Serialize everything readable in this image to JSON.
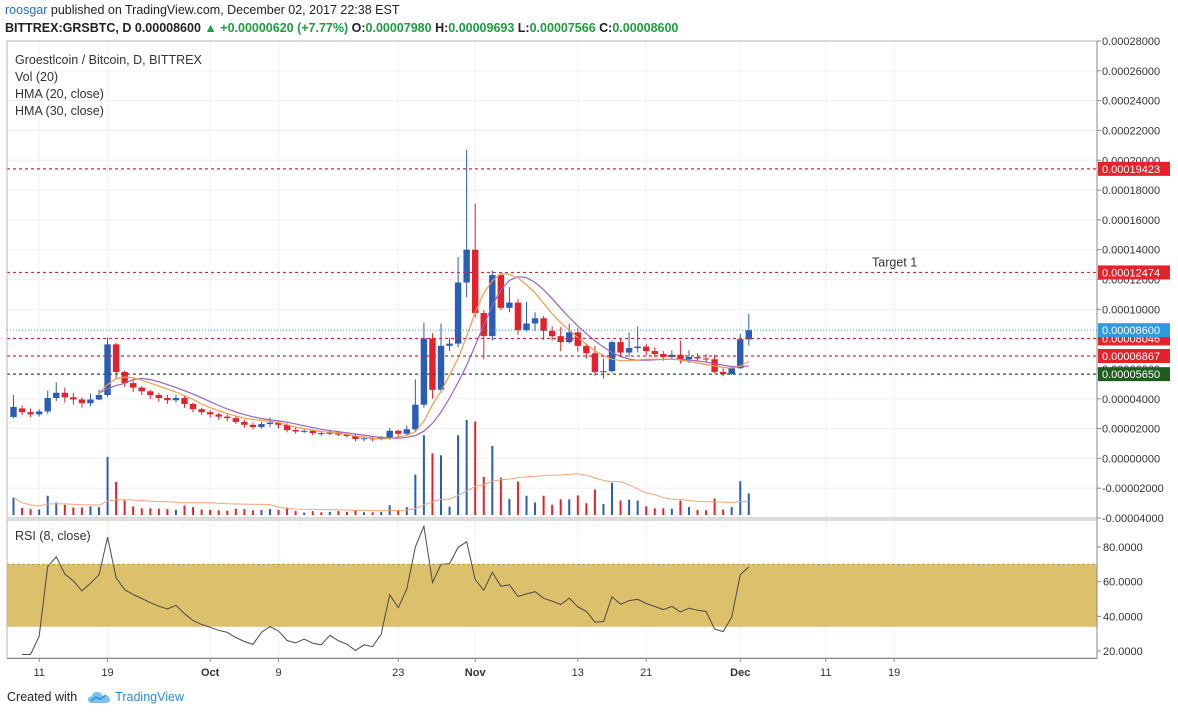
{
  "header": {
    "author": "roosgar",
    "published_text": "published on TradingView.com, December 02, 2017 22:38 EST",
    "symbol": "BITTREX:GRSBTC, D",
    "last": "0.00008600",
    "change_icon": "triangle-up-icon",
    "change": "+0.00000620 (+7.77%)",
    "open_label": "O:",
    "open": "0.00007980",
    "high_label": "H:",
    "high": "0.00009693",
    "low_label": "L:",
    "low": "0.00007566",
    "close_label": "C:",
    "close": "0.00008600"
  },
  "legend": {
    "title": "Groestlcoin / Bitcoin, D, BITTREX",
    "vol": "Vol (20)",
    "hma20": "HMA (20, close)",
    "hma30": "HMA (30, close)",
    "rsi": "RSI (8, close)"
  },
  "footer": {
    "created_with": "Created with",
    "brand": "TradingView",
    "logo_icon": "tradingview-cloud-icon"
  },
  "colors": {
    "up": "#2a5db6",
    "down": "#e3222b",
    "hma20": "#f29b4b",
    "hma30": "#9b63c6",
    "vol_ma": "#f7a477",
    "rsi_line": "#4a4a4a",
    "rsi_band": "#d9b95c",
    "level_red": "#e3222b",
    "level_dark": "#1e5d1e",
    "last_price": "#2f9ae0"
  },
  "chart_data": {
    "type": "candlestick",
    "price_axis": {
      "ticks": [
        "0.00028000",
        "0.00026000",
        "0.00024000",
        "0.00022000",
        "0.00020000",
        "0.00018000",
        "0.00016000",
        "0.00014000",
        "0.00012000",
        "0.00010000",
        "0.00008000",
        "0.00006000",
        "0.00004000",
        "0.00002000",
        "0.00000000",
        "-0.00002000",
        "-0.00004000"
      ],
      "min": -4e-05,
      "max": 0.00028
    },
    "x_axis_labels": [
      {
        "label": "11",
        "index": 3
      },
      {
        "label": "19",
        "index": 11
      },
      {
        "label": "Oct",
        "index": 23
      },
      {
        "label": "9",
        "index": 31
      },
      {
        "label": "23",
        "index": 45
      },
      {
        "label": "Nov",
        "index": 54
      },
      {
        "label": "13",
        "index": 66
      },
      {
        "label": "21",
        "index": 74
      },
      {
        "label": "Dec",
        "index": 85
      },
      {
        "label": "11",
        "index": 95
      },
      {
        "label": "19",
        "index": 103
      }
    ],
    "levels": [
      {
        "value": 0.00019423,
        "label": "0.00019423",
        "color": "#e3222b",
        "style": "dashed"
      },
      {
        "value": 0.00012474,
        "label": "0.00012474",
        "color": "#e3222b",
        "style": "dashed",
        "annotation": "Target 1"
      },
      {
        "value": 8.046e-05,
        "label": "0.00008046",
        "color": "#e3222b",
        "style": "dashed"
      },
      {
        "value": 6.867e-05,
        "label": "0.00006867",
        "color": "#e3222b",
        "style": "dashed"
      },
      {
        "value": 5.65e-05,
        "label": "0.00005650",
        "color": "#1e5d1e",
        "style": "dashed"
      }
    ],
    "last_price": {
      "value": 8.6e-05,
      "label": "0.00008600"
    },
    "candles": [
      [
        2.78e-05,
        3.45e-05,
        2.7e-05,
        4.25e-05
      ],
      [
        3.35e-05,
        3.1e-05,
        2.9e-05,
        3.55e-05
      ],
      [
        3.1e-05,
        2.95e-05,
        2.75e-05,
        3.35e-05
      ],
      [
        2.95e-05,
        3.15e-05,
        2.8e-05,
        3.3e-05
      ],
      [
        3.15e-05,
        4.05e-05,
        3e-05,
        4.55e-05
      ],
      [
        4.05e-05,
        4.4e-05,
        3.85e-05,
        5.1e-05
      ],
      [
        4.4e-05,
        4.1e-05,
        3.75e-05,
        4.75e-05
      ],
      [
        4.1e-05,
        3.95e-05,
        3.6e-05,
        4.4e-05
      ],
      [
        3.95e-05,
        3.7e-05,
        3.4e-05,
        4.1e-05
      ],
      [
        3.7e-05,
        3.95e-05,
        3.5e-05,
        4.35e-05
      ],
      [
        3.95e-05,
        4.25e-05,
        3.9e-05,
        4.6e-05
      ],
      [
        4.25e-05,
        7.65e-05,
        4.1e-05,
        8.1e-05
      ],
      [
        7.65e-05,
        5.8e-05,
        5.4e-05,
        7.75e-05
      ],
      [
        5.8e-05,
        5.05e-05,
        4.8e-05,
        5.9e-05
      ],
      [
        5.05e-05,
        4.75e-05,
        4.45e-05,
        5.25e-05
      ],
      [
        4.75e-05,
        4.5e-05,
        4.25e-05,
        4.85e-05
      ],
      [
        4.5e-05,
        4.25e-05,
        4e-05,
        4.6e-05
      ],
      [
        4.25e-05,
        4.05e-05,
        3.8e-05,
        4.4e-05
      ],
      [
        4.05e-05,
        3.9e-05,
        3.65e-05,
        4.25e-05
      ],
      [
        3.9e-05,
        4.05e-05,
        3.75e-05,
        4.25e-05
      ],
      [
        4.05e-05,
        3.65e-05,
        3.4e-05,
        4.2e-05
      ],
      [
        3.65e-05,
        3.3e-05,
        3.1e-05,
        3.75e-05
      ],
      [
        3.3e-05,
        3.1e-05,
        2.9e-05,
        3.4e-05
      ],
      [
        3.1e-05,
        2.95e-05,
        2.75e-05,
        3.25e-05
      ],
      [
        2.95e-05,
        2.8e-05,
        2.6e-05,
        3.05e-05
      ],
      [
        2.8e-05,
        2.7e-05,
        2.5e-05,
        2.95e-05
      ],
      [
        2.7e-05,
        2.45e-05,
        2.3e-05,
        2.85e-05
      ],
      [
        2.45e-05,
        2.25e-05,
        2.05e-05,
        2.6e-05
      ],
      [
        2.25e-05,
        2.1e-05,
        1.95e-05,
        2.4e-05
      ],
      [
        2.1e-05,
        2.3e-05,
        2e-05,
        2.45e-05
      ],
      [
        2.3e-05,
        2.4e-05,
        2.1e-05,
        2.75e-05
      ],
      [
        2.4e-05,
        2.25e-05,
        2e-05,
        2.5e-05
      ],
      [
        2.25e-05,
        1.9e-05,
        1.75e-05,
        2.35e-05
      ],
      [
        1.9e-05,
        1.8e-05,
        1.65e-05,
        2.05e-05
      ],
      [
        1.8e-05,
        1.85e-05,
        1.7e-05,
        1.95e-05
      ],
      [
        1.85e-05,
        1.7e-05,
        1.55e-05,
        1.9e-05
      ],
      [
        1.7e-05,
        1.65e-05,
        1.5e-05,
        1.8e-05
      ],
      [
        1.65e-05,
        1.75e-05,
        1.55e-05,
        1.85e-05
      ],
      [
        1.75e-05,
        1.6e-05,
        1.5e-05,
        1.85e-05
      ],
      [
        1.6e-05,
        1.5e-05,
        1.4e-05,
        1.7e-05
      ],
      [
        1.5e-05,
        1.3e-05,
        1.15e-05,
        1.6e-05
      ],
      [
        1.3e-05,
        1.35e-05,
        1.15e-05,
        1.45e-05
      ],
      [
        1.35e-05,
        1.3e-05,
        1.15e-05,
        1.45e-05
      ],
      [
        1.3e-05,
        1.4e-05,
        1.2e-05,
        1.5e-05
      ],
      [
        1.4e-05,
        1.85e-05,
        1.25e-05,
        2.05e-05
      ],
      [
        1.85e-05,
        1.65e-05,
        1.45e-05,
        1.9e-05
      ],
      [
        1.65e-05,
        1.95e-05,
        1.5e-05,
        2.2e-05
      ],
      [
        1.95e-05,
        3.6e-05,
        1.8e-05,
        5.3e-05
      ],
      [
        3.6e-05,
        8.05e-05,
        3.4e-05,
        9.1e-05
      ],
      [
        8.05e-05,
        4.6e-05,
        4e-05,
        8.4e-05
      ],
      [
        4.6e-05,
        7.55e-05,
        4.4e-05,
        9.05e-05
      ],
      [
        7.55e-05,
        7.7e-05,
        7.2e-05,
        8.1e-05
      ],
      [
        7.7e-05,
        0.000118,
        7.45e-05,
        0.000135
      ],
      [
        0.000118,
        0.00014,
        0.000108,
        0.000207
      ],
      [
        0.00014,
        9.75e-05,
        9.45e-05,
        0.000171
      ],
      [
        9.75e-05,
        8.2e-05,
        6.65e-05,
        9.95e-05
      ],
      [
        8.2e-05,
        0.000123,
        7.9e-05,
        0.000126
      ],
      [
        0.000123,
        0.000101,
        9.95e-05,
        0.000125
      ],
      [
        0.000101,
        0.0001045,
        9.8e-05,
        0.000115
      ],
      [
        0.0001045,
        8.6e-05,
        8.3e-05,
        0.000107
      ],
      [
        8.6e-05,
        9.05e-05,
        8.5e-05,
        0.000105
      ],
      [
        9.05e-05,
        9.4e-05,
        8.55e-05,
        9.8e-05
      ],
      [
        9.4e-05,
        8.55e-05,
        7.95e-05,
        9.55e-05
      ],
      [
        8.55e-05,
        8.2e-05,
        7.9e-05,
        8.85e-05
      ],
      [
        8.2e-05,
        7.8e-05,
        7.2e-05,
        8.8e-05
      ],
      [
        7.8e-05,
        8.45e-05,
        7.7e-05,
        9.05e-05
      ],
      [
        8.45e-05,
        7.55e-05,
        7.15e-05,
        8.75e-05
      ],
      [
        7.55e-05,
        7.05e-05,
        6.7e-05,
        7.7e-05
      ],
      [
        7.05e-05,
        5.8e-05,
        5.55e-05,
        7.55e-05
      ],
      [
        5.8e-05,
        5.85e-05,
        5.35e-05,
        6.7e-05
      ],
      [
        5.85e-05,
        7.8e-05,
        5.75e-05,
        7.9e-05
      ],
      [
        7.8e-05,
        7.1e-05,
        6.9e-05,
        8.05e-05
      ],
      [
        7.1e-05,
        7.4e-05,
        6.8e-05,
        8.45e-05
      ],
      [
        7.4e-05,
        7.5e-05,
        7.1e-05,
        8.85e-05
      ],
      [
        7.5e-05,
        7.2e-05,
        6.9e-05,
        7.7e-05
      ],
      [
        7.2e-05,
        7e-05,
        6.8e-05,
        7.45e-05
      ],
      [
        7e-05,
        6.8e-05,
        6.55e-05,
        7.2e-05
      ],
      [
        6.8e-05,
        6.95e-05,
        6.6e-05,
        7.25e-05
      ],
      [
        6.95e-05,
        6.65e-05,
        6.35e-05,
        7.9e-05
      ],
      [
        6.65e-05,
        6.8e-05,
        6.4e-05,
        7.25e-05
      ],
      [
        6.8e-05,
        6.7e-05,
        6.5e-05,
        7.05e-05
      ],
      [
        6.7e-05,
        6.65e-05,
        6.45e-05,
        7e-05
      ],
      [
        6.65e-05,
        5.8e-05,
        5.7e-05,
        6.95e-05
      ],
      [
        5.8e-05,
        5.65e-05,
        5.5e-05,
        6.05e-05
      ],
      [
        5.65e-05,
        6.05e-05,
        5.6e-05,
        6.2e-05
      ],
      [
        6.05e-05,
        8e-05,
        6e-05,
        8.35e-05
      ],
      [
        7.98e-05,
        8.6e-05,
        7.566e-05,
        9.693e-05
      ]
    ],
    "hma20": [
      null,
      null,
      null,
      null,
      null,
      null,
      null,
      null,
      null,
      null,
      4.38e-05,
      4.95e-05,
      5.35e-05,
      5.45e-05,
      5.4e-05,
      5.25e-05,
      5.05e-05,
      4.85e-05,
      4.65e-05,
      4.45e-05,
      4.2e-05,
      3.95e-05,
      3.65e-05,
      3.4e-05,
      3.2e-05,
      3e-05,
      2.85e-05,
      2.7e-05,
      2.6e-05,
      2.55e-05,
      2.5e-05,
      2.4e-05,
      2.25e-05,
      2.1e-05,
      2e-05,
      1.9e-05,
      1.8e-05,
      1.75e-05,
      1.7e-05,
      1.6e-05,
      1.5e-05,
      1.45e-05,
      1.35e-05,
      1.3e-05,
      1.35e-05,
      1.45e-05,
      1.55e-05,
      1.8e-05,
      2.5e-05,
      3.6e-05,
      4.5e-05,
      5.6e-05,
      6.7e-05,
      8.2e-05,
      9.8e-05,
      0.000111,
      0.000119,
      0.000124,
      0.0001235,
      0.000121,
      0.0001165,
      0.000111,
      0.000104,
      9.7e-05,
      9.1e-05,
      8.6e-05,
      8.1e-05,
      7.65e-05,
      7.2e-05,
      6.9e-05,
      6.65e-05,
      6.55e-05,
      6.55e-05,
      6.6e-05,
      6.65e-05,
      6.65e-05,
      6.65e-05,
      6.65e-05,
      6.6e-05,
      6.5e-05,
      6.4e-05,
      6.3e-05,
      6.2e-05,
      6.1e-05,
      6.05e-05,
      6.2e-05,
      6.5e-05
    ]
  }
}
